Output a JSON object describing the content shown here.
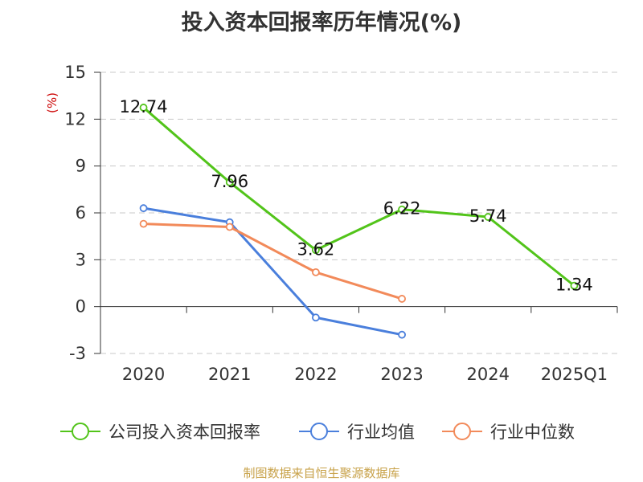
{
  "chart_data": {
    "type": "line",
    "title": "投入资本回报率历年情况(%)",
    "unit_label": "(%)",
    "categories": [
      "2020",
      "2021",
      "2022",
      "2023",
      "2024",
      "2025Q1"
    ],
    "ylim": [
      -3,
      15
    ],
    "yticks": [
      -3,
      0,
      3,
      6,
      9,
      12,
      15
    ],
    "grid": true,
    "legend_position": "bottom",
    "series": [
      {
        "name": "公司投入资本回报率",
        "color": "#52c41a",
        "values": [
          12.74,
          7.96,
          3.62,
          6.22,
          5.74,
          1.34
        ],
        "show_labels": true
      },
      {
        "name": "行业均值",
        "color": "#4a7fdc",
        "values": [
          6.3,
          5.4,
          -0.7,
          -1.8,
          null,
          null
        ],
        "show_labels": false
      },
      {
        "name": "行业中位数",
        "color": "#f28a5a",
        "values": [
          5.3,
          5.1,
          2.2,
          0.5,
          null,
          null
        ],
        "show_labels": false
      }
    ]
  },
  "source": "制图数据来自恒生聚源数据库"
}
